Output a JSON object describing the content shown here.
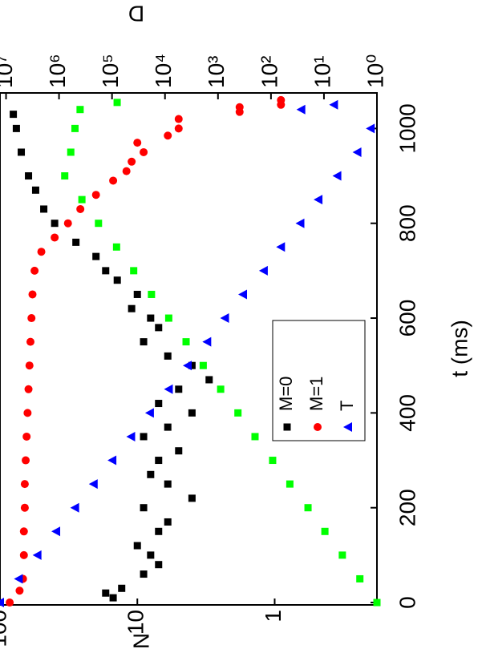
{
  "chart_data": {
    "type": "scatter",
    "x_label": "t (ms)",
    "y_label": "N",
    "y2_label": "D",
    "y2_label_color": "#00ee00",
    "xlim": [
      -5,
      1075
    ],
    "xticks": [
      0,
      200,
      400,
      600,
      800,
      1000
    ],
    "ylim": [
      0.18,
      100
    ],
    "yticks": [
      1,
      10,
      100
    ],
    "ylog": true,
    "y2lim": [
      1,
      13000000
    ],
    "y2log": true,
    "y2_color": "#00ee00",
    "y2ticks": [
      {
        "value": 1,
        "label": "10⁰"
      },
      {
        "value": 10,
        "label": "10¹"
      },
      {
        "value": 100,
        "label": "10²"
      },
      {
        "value": 1000,
        "label": "10³"
      },
      {
        "value": 10000,
        "label": "10⁴"
      },
      {
        "value": 100000,
        "label": "10⁵"
      },
      {
        "value": 1000000,
        "label": "10⁶"
      },
      {
        "value": 10000000,
        "label": "10⁷"
      }
    ],
    "grid": false,
    "legend": "center",
    "series": [
      {
        "name": "M=0",
        "color": "#000000",
        "marker": "square",
        "x": [
          10,
          20,
          30,
          60,
          80,
          100,
          120,
          150,
          170,
          200,
          220,
          250,
          270,
          300,
          320,
          350,
          370,
          400,
          420,
          450,
          470,
          500,
          520,
          550,
          580,
          600,
          620,
          650,
          680,
          700,
          730,
          760,
          800,
          830,
          870,
          900,
          950,
          1000,
          1030
        ],
        "values": [
          15,
          17,
          13,
          9,
          7,
          8,
          10,
          7,
          6,
          9,
          4,
          6,
          8,
          7,
          5,
          9,
          6,
          4,
          7,
          5,
          3,
          4,
          6,
          9,
          7,
          8,
          11,
          10,
          14,
          17,
          20,
          28,
          40,
          48,
          55,
          62,
          70,
          76,
          80
        ]
      },
      {
        "name": "M=1",
        "color": "#ff0000",
        "marker": "circle",
        "x": [
          0,
          25,
          50,
          100,
          150,
          200,
          250,
          300,
          350,
          400,
          450,
          500,
          550,
          600,
          650,
          700,
          740,
          770,
          800,
          830,
          860,
          890,
          910,
          930,
          950,
          970,
          985,
          1000,
          1020,
          1035,
          1045,
          1050,
          1060
        ],
        "values": [
          85,
          72,
          68,
          67,
          67,
          66,
          66,
          65,
          64,
          63,
          62,
          61,
          60,
          59,
          58,
          56,
          50,
          40,
          32,
          26,
          20,
          15,
          12,
          11,
          9,
          10,
          6,
          5,
          5,
          1.8,
          1.8,
          0.9,
          0.9
        ]
      },
      {
        "name": "T",
        "color": "#0000ff",
        "marker": "triangle",
        "x": [
          0,
          50,
          100,
          150,
          200,
          250,
          300,
          350,
          400,
          450,
          500,
          550,
          600,
          650,
          700,
          750,
          800,
          850,
          900,
          950,
          1000,
          1040,
          1050
        ],
        "values": [
          100,
          73,
          53.4,
          39,
          28.4,
          20.8,
          15.2,
          11.1,
          8.1,
          5.9,
          4.3,
          3.1,
          2.3,
          1.7,
          1.2,
          0.9,
          0.65,
          0.48,
          0.35,
          0.25,
          0.2,
          0.64,
          0.37
        ]
      },
      {
        "color": "#00ff00",
        "marker": "square",
        "axis": "y2",
        "x": [
          0,
          50,
          100,
          150,
          200,
          250,
          300,
          350,
          400,
          450,
          500,
          550,
          600,
          650,
          700,
          750,
          800,
          850,
          900,
          950,
          1000,
          1040,
          1055
        ],
        "values": [
          1,
          2.1,
          4.5,
          9.6,
          20,
          44,
          93,
          200,
          420,
          890,
          1900,
          4000,
          8500,
          18000,
          39000,
          82000,
          180000,
          370000,
          780000,
          600000,
          500000,
          400000,
          80000
        ]
      }
    ]
  }
}
